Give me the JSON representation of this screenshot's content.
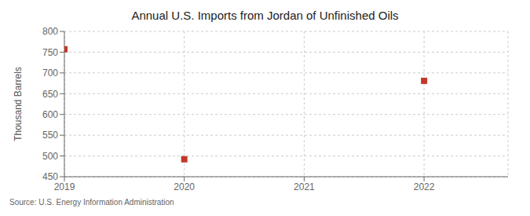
{
  "chart_data": {
    "type": "scatter",
    "title": "Annual U.S. Imports from Jordan of Unfinished Oils",
    "y_label": "Thousand Barrels",
    "annotations": [
      "Source: U.S. Energy Information Administration"
    ],
    "x": [
      2019,
      2020,
      2021,
      2022
    ],
    "values": [
      757,
      492,
      null,
      681
    ],
    "color": "#c0392b",
    "marker": "square",
    "xlim": [
      2019,
      2022.7
    ],
    "xticks": [
      2019,
      2020,
      2021,
      2022
    ],
    "ylim": [
      450,
      800
    ],
    "yticks": [
      450,
      500,
      550,
      600,
      650,
      700,
      750,
      800
    ],
    "grid": true
  }
}
